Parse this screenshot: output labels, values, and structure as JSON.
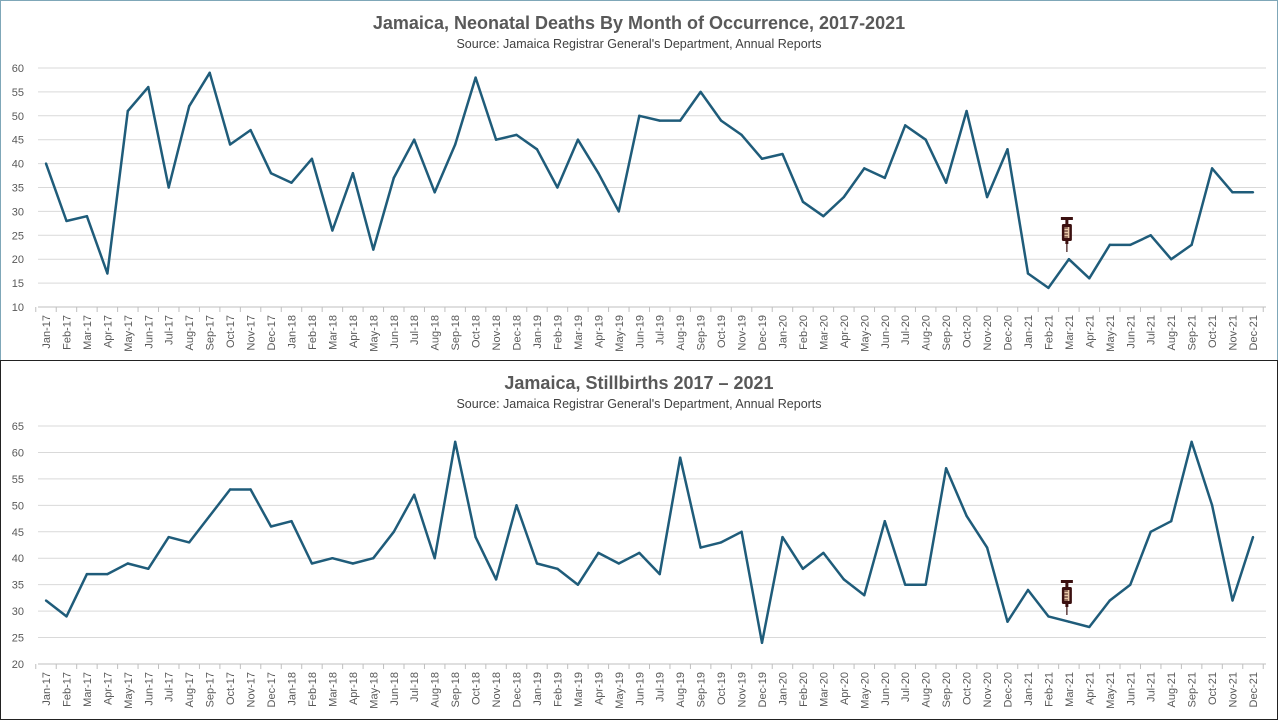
{
  "source": "Source: Jamaica Registrar General's Department, Annual Reports",
  "colors": {
    "line": "#1f5c7a",
    "grid": "#d9d9d9",
    "syringe": "#3b1010"
  },
  "months": [
    "Jan-17",
    "Feb-17",
    "Mar-17",
    "Apr-17",
    "May-17",
    "Jun-17",
    "Jul-17",
    "Aug-17",
    "Sep-17",
    "Oct-17",
    "Nov-17",
    "Dec-17",
    "Jan-18",
    "Feb-18",
    "Mar-18",
    "Apr-18",
    "May-18",
    "Jun-18",
    "Jul-18",
    "Aug-18",
    "Sep-18",
    "Oct-18",
    "Nov-18",
    "Dec-18",
    "Jan-19",
    "Feb-19",
    "Mar-19",
    "Apr-19",
    "May-19",
    "Jun-19",
    "Jul-19",
    "Aug-19",
    "Sep-19",
    "Oct-19",
    "Nov-19",
    "Dec-19",
    "Jan-20",
    "Feb-20",
    "Mar-20",
    "Apr-20",
    "May-20",
    "Jun-20",
    "Jul-20",
    "Aug-20",
    "Sep-20",
    "Oct-20",
    "Nov-20",
    "Dec-20",
    "Jan-21",
    "Feb-21",
    "Mar-21",
    "Apr-21",
    "May-21",
    "Jun-21",
    "Jul-21",
    "Aug-21",
    "Sep-21",
    "Oct-21",
    "Nov-21",
    "Dec-21"
  ],
  "chart_data": [
    {
      "type": "line",
      "title": "Jamaica, Neonatal Deaths By Month of Occurrence, 2017-2021",
      "subtitle": "Source: Jamaica Registrar General's Department, Annual Reports",
      "xlabel": "",
      "ylabel": "",
      "ylim": [
        10,
        60
      ],
      "ystep": 5,
      "grid": true,
      "annotation": {
        "type": "syringe-icon",
        "at": "Mar-21"
      },
      "values": [
        40,
        28,
        29,
        17,
        51,
        56,
        35,
        52,
        59,
        44,
        47,
        38,
        36,
        41,
        26,
        38,
        22,
        37,
        45,
        34,
        44,
        58,
        45,
        46,
        43,
        35,
        45,
        38,
        30,
        50,
        49,
        49,
        55,
        49,
        46,
        41,
        42,
        32,
        29,
        33,
        39,
        37,
        48,
        45,
        36,
        51,
        33,
        43,
        17,
        14,
        20,
        16,
        23,
        23,
        25,
        20,
        23,
        39,
        34,
        34
      ]
    },
    {
      "type": "line",
      "title": "Jamaica, Stillbirths 2017 – 2021",
      "subtitle": "Source: Jamaica Registrar General's Department, Annual Reports",
      "xlabel": "",
      "ylabel": "",
      "ylim": [
        20,
        65
      ],
      "ystep": 5,
      "grid": true,
      "annotation": {
        "type": "syringe-icon",
        "at": "Mar-21"
      },
      "values": [
        32,
        29,
        37,
        37,
        39,
        38,
        44,
        43,
        48,
        53,
        53,
        46,
        47,
        39,
        40,
        39,
        40,
        45,
        52,
        40,
        62,
        44,
        36,
        50,
        39,
        38,
        35,
        41,
        39,
        41,
        37,
        59,
        42,
        43,
        45,
        24,
        44,
        38,
        41,
        36,
        33,
        47,
        35,
        35,
        57,
        48,
        42,
        28,
        34,
        29,
        28,
        27,
        32,
        35,
        45,
        47,
        62,
        50,
        32,
        44
      ]
    }
  ]
}
